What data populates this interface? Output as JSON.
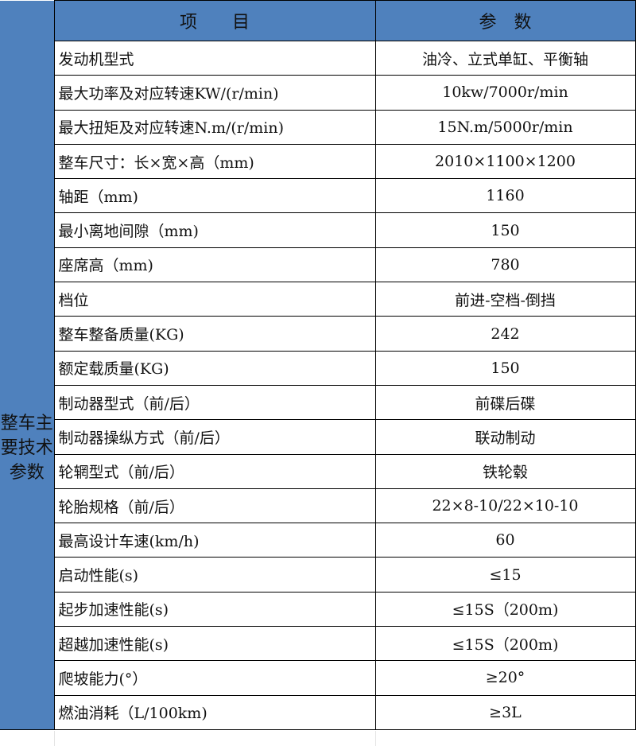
{
  "header": {
    "item": "项　　目",
    "param": "参　数"
  },
  "side_label": "整车主要技术参数",
  "rows": [
    {
      "name": "发动机型式",
      "value": "油冷、立式单缸、平衡轴"
    },
    {
      "name": "最大功率及对应转速KW/(r/min)",
      "value": "10kw/7000r/min"
    },
    {
      "name": "最大扭矩及对应转速N.m/(r/min)",
      "value": "15N.m/5000r/min"
    },
    {
      "name": "整车尺寸：长×宽×高（mm)",
      "value": "2010×1100×1200"
    },
    {
      "name": "轴距（mm)",
      "value": "1160"
    },
    {
      "name": "最小离地间隙（mm)",
      "value": "150"
    },
    {
      "name": "座席高（mm)",
      "value": "780"
    },
    {
      "name": "档位",
      "value": "前进-空档-倒挡"
    },
    {
      "name": "整车整备质量(KG)",
      "value": "242"
    },
    {
      "name": "额定载质量(KG)",
      "value": "150"
    },
    {
      "name": "制动器型式（前/后）",
      "value": "前碟后碟"
    },
    {
      "name": "制动器操纵方式（前/后）",
      "value": "联动制动"
    },
    {
      "name": "轮辋型式（前/后）",
      "value": "铁轮毂"
    },
    {
      "name": "轮胎规格（前/后）",
      "value": "22×8-10/22×10-10"
    },
    {
      "name": "最高设计车速(km/h)",
      "value": "60"
    },
    {
      "name": "启动性能(s)",
      "value": "≤15"
    },
    {
      "name": "起步加速性能(s)",
      "value": "≤15S（200m)"
    },
    {
      "name": "超越加速性能(s)",
      "value": "≤15S（200m)"
    },
    {
      "name": "爬坡能力(°）",
      "value": "≥20°"
    },
    {
      "name": "燃油消耗（L/100km)",
      "value": "≥3L"
    }
  ],
  "colors": {
    "header_bg": "#4f81bd"
  }
}
